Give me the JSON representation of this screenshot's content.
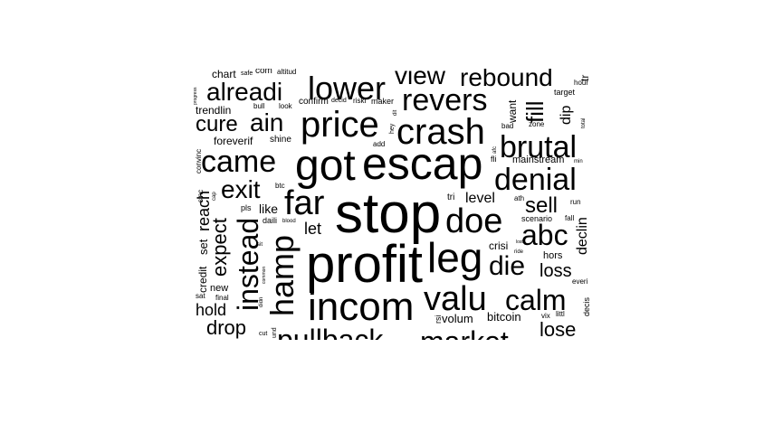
{
  "text_color": "#000000",
  "background": "#ffffff",
  "words": [
    {
      "text": "stop",
      "weight": 62
    },
    {
      "text": "profit",
      "weight": 58
    },
    {
      "text": "escap",
      "weight": 50
    },
    {
      "text": "got",
      "weight": 48
    },
    {
      "text": "leg",
      "weight": 46
    },
    {
      "text": "incom",
      "weight": 44
    },
    {
      "text": "crash",
      "weight": 40
    },
    {
      "text": "price",
      "weight": 40
    },
    {
      "text": "far",
      "weight": 38
    },
    {
      "text": "doe",
      "weight": 38
    },
    {
      "text": "valu",
      "weight": 38
    },
    {
      "text": "lower",
      "weight": 36
    },
    {
      "text": "revers",
      "weight": 34
    },
    {
      "text": "came",
      "weight": 34
    },
    {
      "text": "brutal",
      "weight": 34
    },
    {
      "text": "denial",
      "weight": 34
    },
    {
      "text": "hamp",
      "weight": 36
    },
    {
      "text": "instead",
      "weight": 32
    },
    {
      "text": "abc",
      "weight": 32
    },
    {
      "text": "calm",
      "weight": 32
    },
    {
      "text": "pullback",
      "weight": 32
    },
    {
      "text": "market",
      "weight": 32
    },
    {
      "text": "die",
      "weight": 30
    },
    {
      "text": "alreadi",
      "weight": 28
    },
    {
      "text": "view",
      "weight": 28
    },
    {
      "text": "rebound",
      "weight": 28
    },
    {
      "text": "exit",
      "weight": 28
    },
    {
      "text": "ain",
      "weight": 28
    },
    {
      "text": "fill",
      "weight": 26
    },
    {
      "text": "cure",
      "weight": 24
    },
    {
      "text": "sell",
      "weight": 24
    },
    {
      "text": "expect",
      "weight": 22
    },
    {
      "text": "lose",
      "weight": 22
    },
    {
      "text": "drop",
      "weight": 22
    },
    {
      "text": "loss",
      "weight": 20
    },
    {
      "text": "reach",
      "weight": 18
    },
    {
      "text": "let",
      "weight": 18
    },
    {
      "text": "declin",
      "weight": 16
    },
    {
      "text": "dip",
      "weight": 16
    },
    {
      "text": "level",
      "weight": 16
    },
    {
      "text": "hold",
      "weight": 18
    },
    {
      "text": "like",
      "weight": 14
    },
    {
      "text": "set",
      "weight": 13
    },
    {
      "text": "bitcoin",
      "weight": 13
    },
    {
      "text": "volum",
      "weight": 13
    },
    {
      "text": "crisi",
      "weight": 12
    },
    {
      "text": "chart",
      "weight": 12
    },
    {
      "text": "foreverif",
      "weight": 12
    },
    {
      "text": "trendlin",
      "weight": 12
    },
    {
      "text": "want",
      "weight": 12
    },
    {
      "text": "credit",
      "weight": 12
    },
    {
      "text": "new",
      "weight": 11
    },
    {
      "text": "hors",
      "weight": 11
    },
    {
      "text": "mainstream",
      "weight": 11
    },
    {
      "text": "shine",
      "weight": 10
    },
    {
      "text": "tri",
      "weight": 10
    },
    {
      "text": "confirm",
      "weight": 10
    },
    {
      "text": "maker",
      "weight": 9
    },
    {
      "text": "target",
      "weight": 9
    },
    {
      "text": "daili",
      "weight": 9
    },
    {
      "text": "decis",
      "weight": 9
    },
    {
      "text": "pls",
      "weight": 9
    },
    {
      "text": "scenario",
      "weight": 9
    },
    {
      "text": "final",
      "weight": 8
    },
    {
      "text": "sat",
      "weight": 8
    },
    {
      "text": "sinc",
      "weight": 8
    },
    {
      "text": "add",
      "weight": 8
    },
    {
      "text": "convinc",
      "weight": 8
    },
    {
      "text": "btc",
      "weight": 8
    },
    {
      "text": "bull",
      "weight": 8
    },
    {
      "text": "look",
      "weight": 8
    },
    {
      "text": "decid",
      "weight": 7
    },
    {
      "text": "riski",
      "weight": 8
    },
    {
      "text": "hour",
      "weight": 8
    },
    {
      "text": "zone",
      "weight": 8
    },
    {
      "text": "bad",
      "weight": 8
    },
    {
      "text": "ath",
      "weight": 8
    },
    {
      "text": "fall",
      "weight": 8
    },
    {
      "text": "run",
      "weight": 8
    },
    {
      "text": "everi",
      "weight": 8
    },
    {
      "text": "littl",
      "weight": 8
    },
    {
      "text": "vix",
      "weight": 8
    },
    {
      "text": "rsi",
      "weight": 9
    },
    {
      "text": "fli",
      "weight": 9
    },
    {
      "text": "cut",
      "weight": 7
    },
    {
      "text": "com",
      "weight": 10
    },
    {
      "text": "altitud",
      "weight": 8
    },
    {
      "text": "safe",
      "weight": 7
    },
    {
      "text": "tr",
      "weight": 12
    },
    {
      "text": "min",
      "weight": 6
    },
    {
      "text": "total",
      "weight": 6
    },
    {
      "text": "hey",
      "weight": 7
    },
    {
      "text": "dit",
      "weight": 6
    },
    {
      "text": "cap",
      "weight": 6
    },
    {
      "text": "blood",
      "weight": 6
    },
    {
      "text": "sit",
      "weight": 6
    },
    {
      "text": "didn",
      "weight": 6
    },
    {
      "text": "common",
      "weight": 5
    },
    {
      "text": "ride",
      "weight": 6
    },
    {
      "text": "lost",
      "weight": 5
    },
    {
      "text": "afc",
      "weight": 6
    },
    {
      "text": "progress",
      "weight": 5
    },
    {
      "text": "und",
      "weight": 7
    }
  ]
}
